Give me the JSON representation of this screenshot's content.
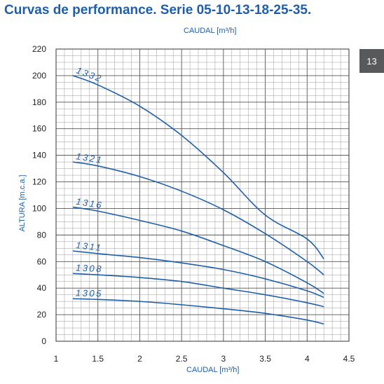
{
  "page": {
    "title": "Curvas de performance. Serie 05-10-13-18-25-35.",
    "badge": "13"
  },
  "chart_data": {
    "type": "line",
    "title": "Curvas de performance. Serie 05-10-13-18-25-35.",
    "xlabel": "CAUDAL [m³/h]",
    "ylabel": "ALTURA [m.c.a.]",
    "xlim": [
      1,
      4.5
    ],
    "ylim": [
      0,
      220
    ],
    "x_ticks": [
      "1",
      "1.5",
      "2",
      "2.5",
      "3",
      "3.5",
      "4",
      "4.5"
    ],
    "y_ticks": [
      "0",
      "20",
      "40",
      "60",
      "80",
      "100",
      "120",
      "140",
      "160",
      "180",
      "200",
      "220"
    ],
    "grid": true,
    "legend": "none",
    "line_color": "#1f5fa8",
    "series": [
      {
        "name": "1332",
        "x": [
          1.2,
          1.5,
          2.0,
          2.5,
          3.0,
          3.5,
          4.0,
          4.2
        ],
        "y": [
          200,
          193,
          177,
          155,
          127,
          95,
          77,
          62
        ]
      },
      {
        "name": "1321",
        "x": [
          1.2,
          1.5,
          2.0,
          2.5,
          3.0,
          3.5,
          4.0,
          4.2
        ],
        "y": [
          135,
          132,
          124,
          113,
          99,
          81,
          60,
          50
        ]
      },
      {
        "name": "1316",
        "x": [
          1.2,
          1.5,
          2.0,
          2.5,
          3.0,
          3.5,
          4.0,
          4.2
        ],
        "y": [
          101,
          98,
          91,
          83,
          72,
          60,
          44,
          36
        ]
      },
      {
        "name": "1311",
        "x": [
          1.2,
          1.5,
          2.0,
          2.5,
          3.0,
          3.5,
          4.0,
          4.2
        ],
        "y": [
          68,
          66,
          63,
          59,
          54,
          47,
          38,
          33
        ]
      },
      {
        "name": "1308",
        "x": [
          1.2,
          1.5,
          2.0,
          2.5,
          3.0,
          3.5,
          4.0,
          4.2
        ],
        "y": [
          51,
          50,
          48,
          45,
          40,
          35,
          29,
          26
        ]
      },
      {
        "name": "1305",
        "x": [
          1.2,
          1.5,
          2.0,
          2.5,
          3.0,
          3.5,
          4.0,
          4.2
        ],
        "y": [
          32,
          31.5,
          30,
          27.5,
          24.5,
          21,
          16,
          13
        ]
      }
    ]
  }
}
